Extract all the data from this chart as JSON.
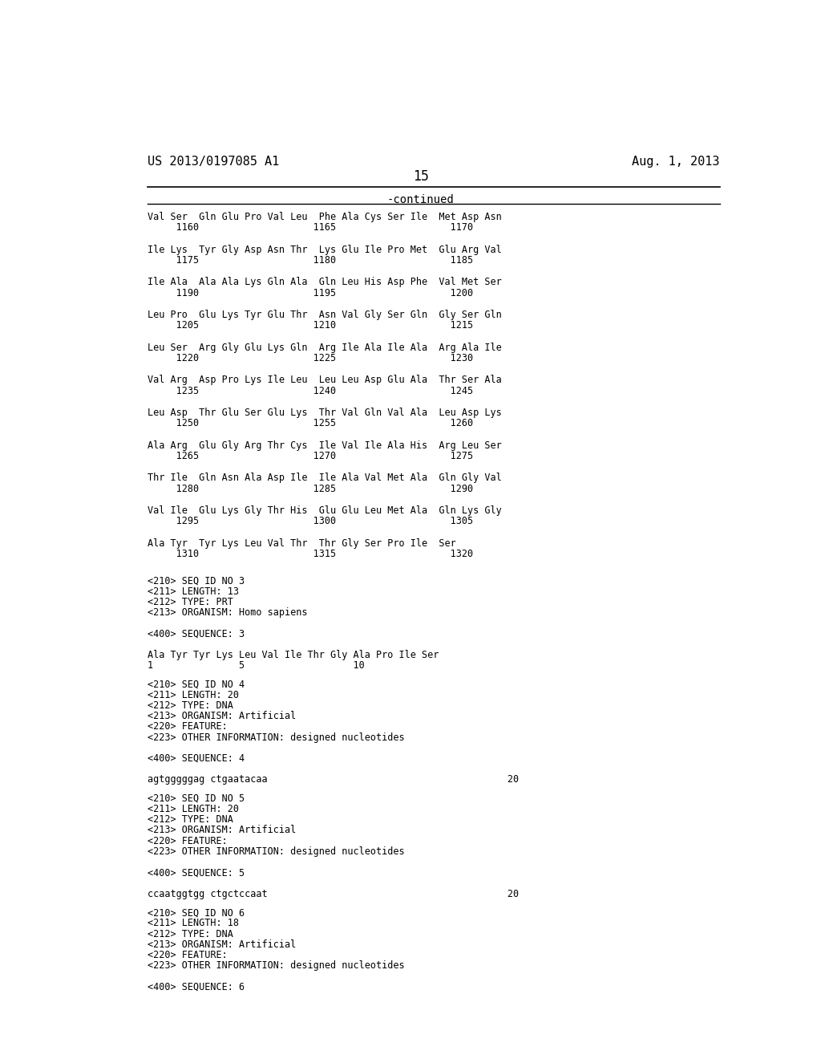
{
  "bg_color": "#ffffff",
  "text_color": "#000000",
  "header_left": "US 2013/0197085 A1",
  "header_right": "Aug. 1, 2013",
  "page_number": "15",
  "continued_label": "-continued",
  "header_fontsize": 11,
  "page_num_fontsize": 12,
  "continued_fontsize": 10,
  "body_fontsize": 8.5,
  "lines": [
    [
      "Val Ser  Gln Glu Pro Val Leu  Phe Ala Cys Ser Ile  Met Asp Asn",
      "     1160                    1165                    1170"
    ],
    [
      "Ile Lys  Tyr Gly Asp Asn Thr  Lys Glu Ile Pro Met  Glu Arg Val",
      "     1175                    1180                    1185"
    ],
    [
      "Ile Ala  Ala Ala Lys Gln Ala  Gln Leu His Asp Phe  Val Met Ser",
      "     1190                    1195                    1200"
    ],
    [
      "Leu Pro  Glu Lys Tyr Glu Thr  Asn Val Gly Ser Gln  Gly Ser Gln",
      "     1205                    1210                    1215"
    ],
    [
      "Leu Ser  Arg Gly Glu Lys Gln  Arg Ile Ala Ile Ala  Arg Ala Ile",
      "     1220                    1225                    1230"
    ],
    [
      "Val Arg  Asp Pro Lys Ile Leu  Leu Leu Asp Glu Ala  Thr Ser Ala",
      "     1235                    1240                    1245"
    ],
    [
      "Leu Asp  Thr Glu Ser Glu Lys  Thr Val Gln Val Ala  Leu Asp Lys",
      "     1250                    1255                    1260"
    ],
    [
      "Ala Arg  Glu Gly Arg Thr Cys  Ile Val Ile Ala His  Arg Leu Ser",
      "     1265                    1270                    1275"
    ],
    [
      "Thr Ile  Gln Asn Ala Asp Ile  Ile Ala Val Met Ala  Gln Gly Val",
      "     1280                    1285                    1290"
    ],
    [
      "Val Ile  Glu Lys Gly Thr His  Glu Glu Leu Met Ala  Gln Lys Gly",
      "     1295                    1300                    1305"
    ],
    [
      "Ala Tyr  Tyr Lys Leu Val Thr  Thr Gly Ser Pro Ile  Ser",
      "     1310                    1315                    1320"
    ]
  ],
  "seq3_block": [
    "<210> SEQ ID NO 3",
    "<211> LENGTH: 13",
    "<212> TYPE: PRT",
    "<213> ORGANISM: Homo sapiens",
    "",
    "<400> SEQUENCE: 3",
    "",
    "Ala Tyr Tyr Lys Leu Val Ile Thr Gly Ala Pro Ile Ser",
    "1               5                   10"
  ],
  "seq4_block": [
    "<210> SEQ ID NO 4",
    "<211> LENGTH: 20",
    "<212> TYPE: DNA",
    "<213> ORGANISM: Artificial",
    "<220> FEATURE:",
    "<223> OTHER INFORMATION: designed nucleotides",
    "",
    "<400> SEQUENCE: 4",
    "",
    "agtgggggag ctgaatacaa                                          20"
  ],
  "seq5_block": [
    "<210> SEQ ID NO 5",
    "<211> LENGTH: 20",
    "<212> TYPE: DNA",
    "<213> ORGANISM: Artificial",
    "<220> FEATURE:",
    "<223> OTHER INFORMATION: designed nucleotides",
    "",
    "<400> SEQUENCE: 5",
    "",
    "ccaatggtgg ctgctccaat                                          20"
  ],
  "seq6_block": [
    "<210> SEQ ID NO 6",
    "<211> LENGTH: 18",
    "<212> TYPE: DNA",
    "<213> ORGANISM: Artificial",
    "<220> FEATURE:",
    "<223> OTHER INFORMATION: designed nucleotides",
    "",
    "<400> SEQUENCE: 6"
  ]
}
